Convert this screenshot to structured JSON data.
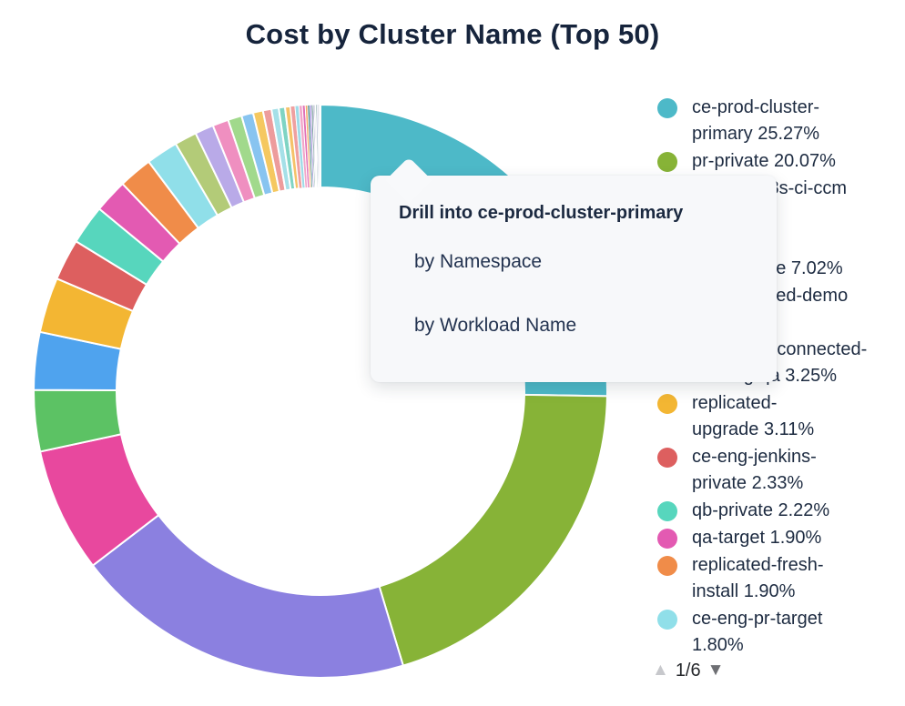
{
  "title": "Cost by Cluster Name (Top 50)",
  "tooltip": {
    "title": "Drill into ce-prod-cluster-primary",
    "items": [
      "by Namespace",
      "by Workload Name"
    ]
  },
  "pagination": {
    "up_icon": "▲",
    "label": "1/6",
    "down_icon": "▼"
  },
  "chart_data": {
    "type": "pie",
    "donut": true,
    "title": "Cost by Cluster Name (Top 50)",
    "legend_position": "right",
    "grid": false,
    "series": [
      {
        "name": "ce-prod-cluster-primary",
        "pct": 25.27,
        "color": "#4db9c8",
        "lines": [
          "ce-prod-cluster-",
          "primary 25.27%"
        ]
      },
      {
        "name": "pr-private",
        "pct": 20.07,
        "color": "#87b337",
        "lines": [
          "pr-private 20.07%"
        ]
      },
      {
        "name": "ce-prod-k8s-ci-ccm",
        "pct": 19.25,
        "color": "#8b80e0",
        "lines": [
          "ce-prod-k8s-ci-ccm",
          "19.25%"
        ]
      },
      {
        "name": "ce-prod-kots-private",
        "pct": 7.02,
        "color": "#e8489e",
        "lines": [
          "ce-prod-",
          "kots-private 7.02%"
        ]
      },
      {
        "name": "ce-replicated-demo",
        "pct": 3.45,
        "color": "#5cc264",
        "lines": [
          "ce-replicated-demo",
          "3.45%"
        ]
      },
      {
        "name": "ce-eng-disconnected-existing-qa",
        "pct": 3.25,
        "color": "#4fa3ee",
        "lines": [
          "ce-eng-disconnected-",
          "existing-qa 3.25%"
        ]
      },
      {
        "name": "replicated-upgrade",
        "pct": 3.11,
        "color": "#f3b633",
        "lines": [
          "replicated-",
          "upgrade 3.11%"
        ]
      },
      {
        "name": "ce-eng-jenkins-private",
        "pct": 2.33,
        "color": "#dd5f5f",
        "lines": [
          "ce-eng-jenkins-",
          "private 2.33%"
        ]
      },
      {
        "name": "qb-private",
        "pct": 2.22,
        "color": "#57d6bd",
        "lines": [
          "qb-private 2.22%"
        ]
      },
      {
        "name": "qa-target",
        "pct": 1.9,
        "color": "#e35ab2",
        "lines": [
          "qa-target 1.90%"
        ]
      },
      {
        "name": "replicated-fresh-install",
        "pct": 1.9,
        "color": "#f08c49",
        "lines": [
          "replicated-fresh-",
          "install 1.90%"
        ]
      },
      {
        "name": "ce-eng-pr-target",
        "pct": 1.8,
        "color": "#90dfe9",
        "lines": [
          "ce-eng-pr-target",
          "1.80%"
        ]
      }
    ],
    "others": [
      {
        "pct": 1.25,
        "color": "#b3cb78"
      },
      {
        "pct": 1.05,
        "color": "#b9aae8"
      },
      {
        "pct": 0.9,
        "color": "#ef8fc0"
      },
      {
        "pct": 0.78,
        "color": "#a1d98c"
      },
      {
        "pct": 0.66,
        "color": "#88c4f0"
      },
      {
        "pct": 0.56,
        "color": "#f5c860"
      },
      {
        "pct": 0.48,
        "color": "#ed9c9c"
      },
      {
        "pct": 0.41,
        "color": "#a5e0e8"
      },
      {
        "pct": 0.35,
        "color": "#7fd4c4"
      },
      {
        "pct": 0.3,
        "color": "#f5c268"
      },
      {
        "pct": 0.26,
        "color": "#efa0a0"
      },
      {
        "pct": 0.22,
        "color": "#9fdbe8"
      },
      {
        "pct": 0.19,
        "color": "#f2a6c8"
      },
      {
        "pct": 0.16,
        "color": "#e070b8"
      },
      {
        "pct": 0.135,
        "color": "#f5a868"
      },
      {
        "pct": 0.115,
        "color": "#1f6f72"
      },
      {
        "pct": 0.1,
        "color": "#7a5fd0"
      },
      {
        "pct": 0.085,
        "color": "#185c50"
      },
      {
        "pct": 0.07,
        "color": "#4b3f8f"
      },
      {
        "pct": 0.06,
        "color": "#1f3a5f"
      },
      {
        "pct": 0.05,
        "color": "#6a5acd"
      },
      {
        "pct": 0.042,
        "color": "#2f6f6f"
      },
      {
        "pct": 0.036,
        "color": "#8470d8"
      },
      {
        "pct": 0.03,
        "color": "#1d4e4e"
      },
      {
        "pct": 0.025,
        "color": "#5e48c0"
      },
      {
        "pct": 0.02,
        "color": "#16324f"
      },
      {
        "pct": 0.016,
        "color": "#7a62d0"
      },
      {
        "pct": 0.013,
        "color": "#1a5248"
      },
      {
        "pct": 0.011,
        "color": "#4b3f8f"
      },
      {
        "pct": 0.009,
        "color": "#203a55"
      },
      {
        "pct": 0.007,
        "color": "#5d4bbf"
      },
      {
        "pct": 0.006,
        "color": "#174a42"
      },
      {
        "pct": 0.005,
        "color": "#3e3380"
      },
      {
        "pct": 0.004,
        "color": "#1c3450"
      },
      {
        "pct": 0.0035,
        "color": "#54c2cc"
      },
      {
        "pct": 0.003,
        "color": "#3a3178"
      },
      {
        "pct": 0.0025,
        "color": "#1e3148"
      },
      {
        "pct": 0.002,
        "color": "#2b2867"
      }
    ]
  }
}
